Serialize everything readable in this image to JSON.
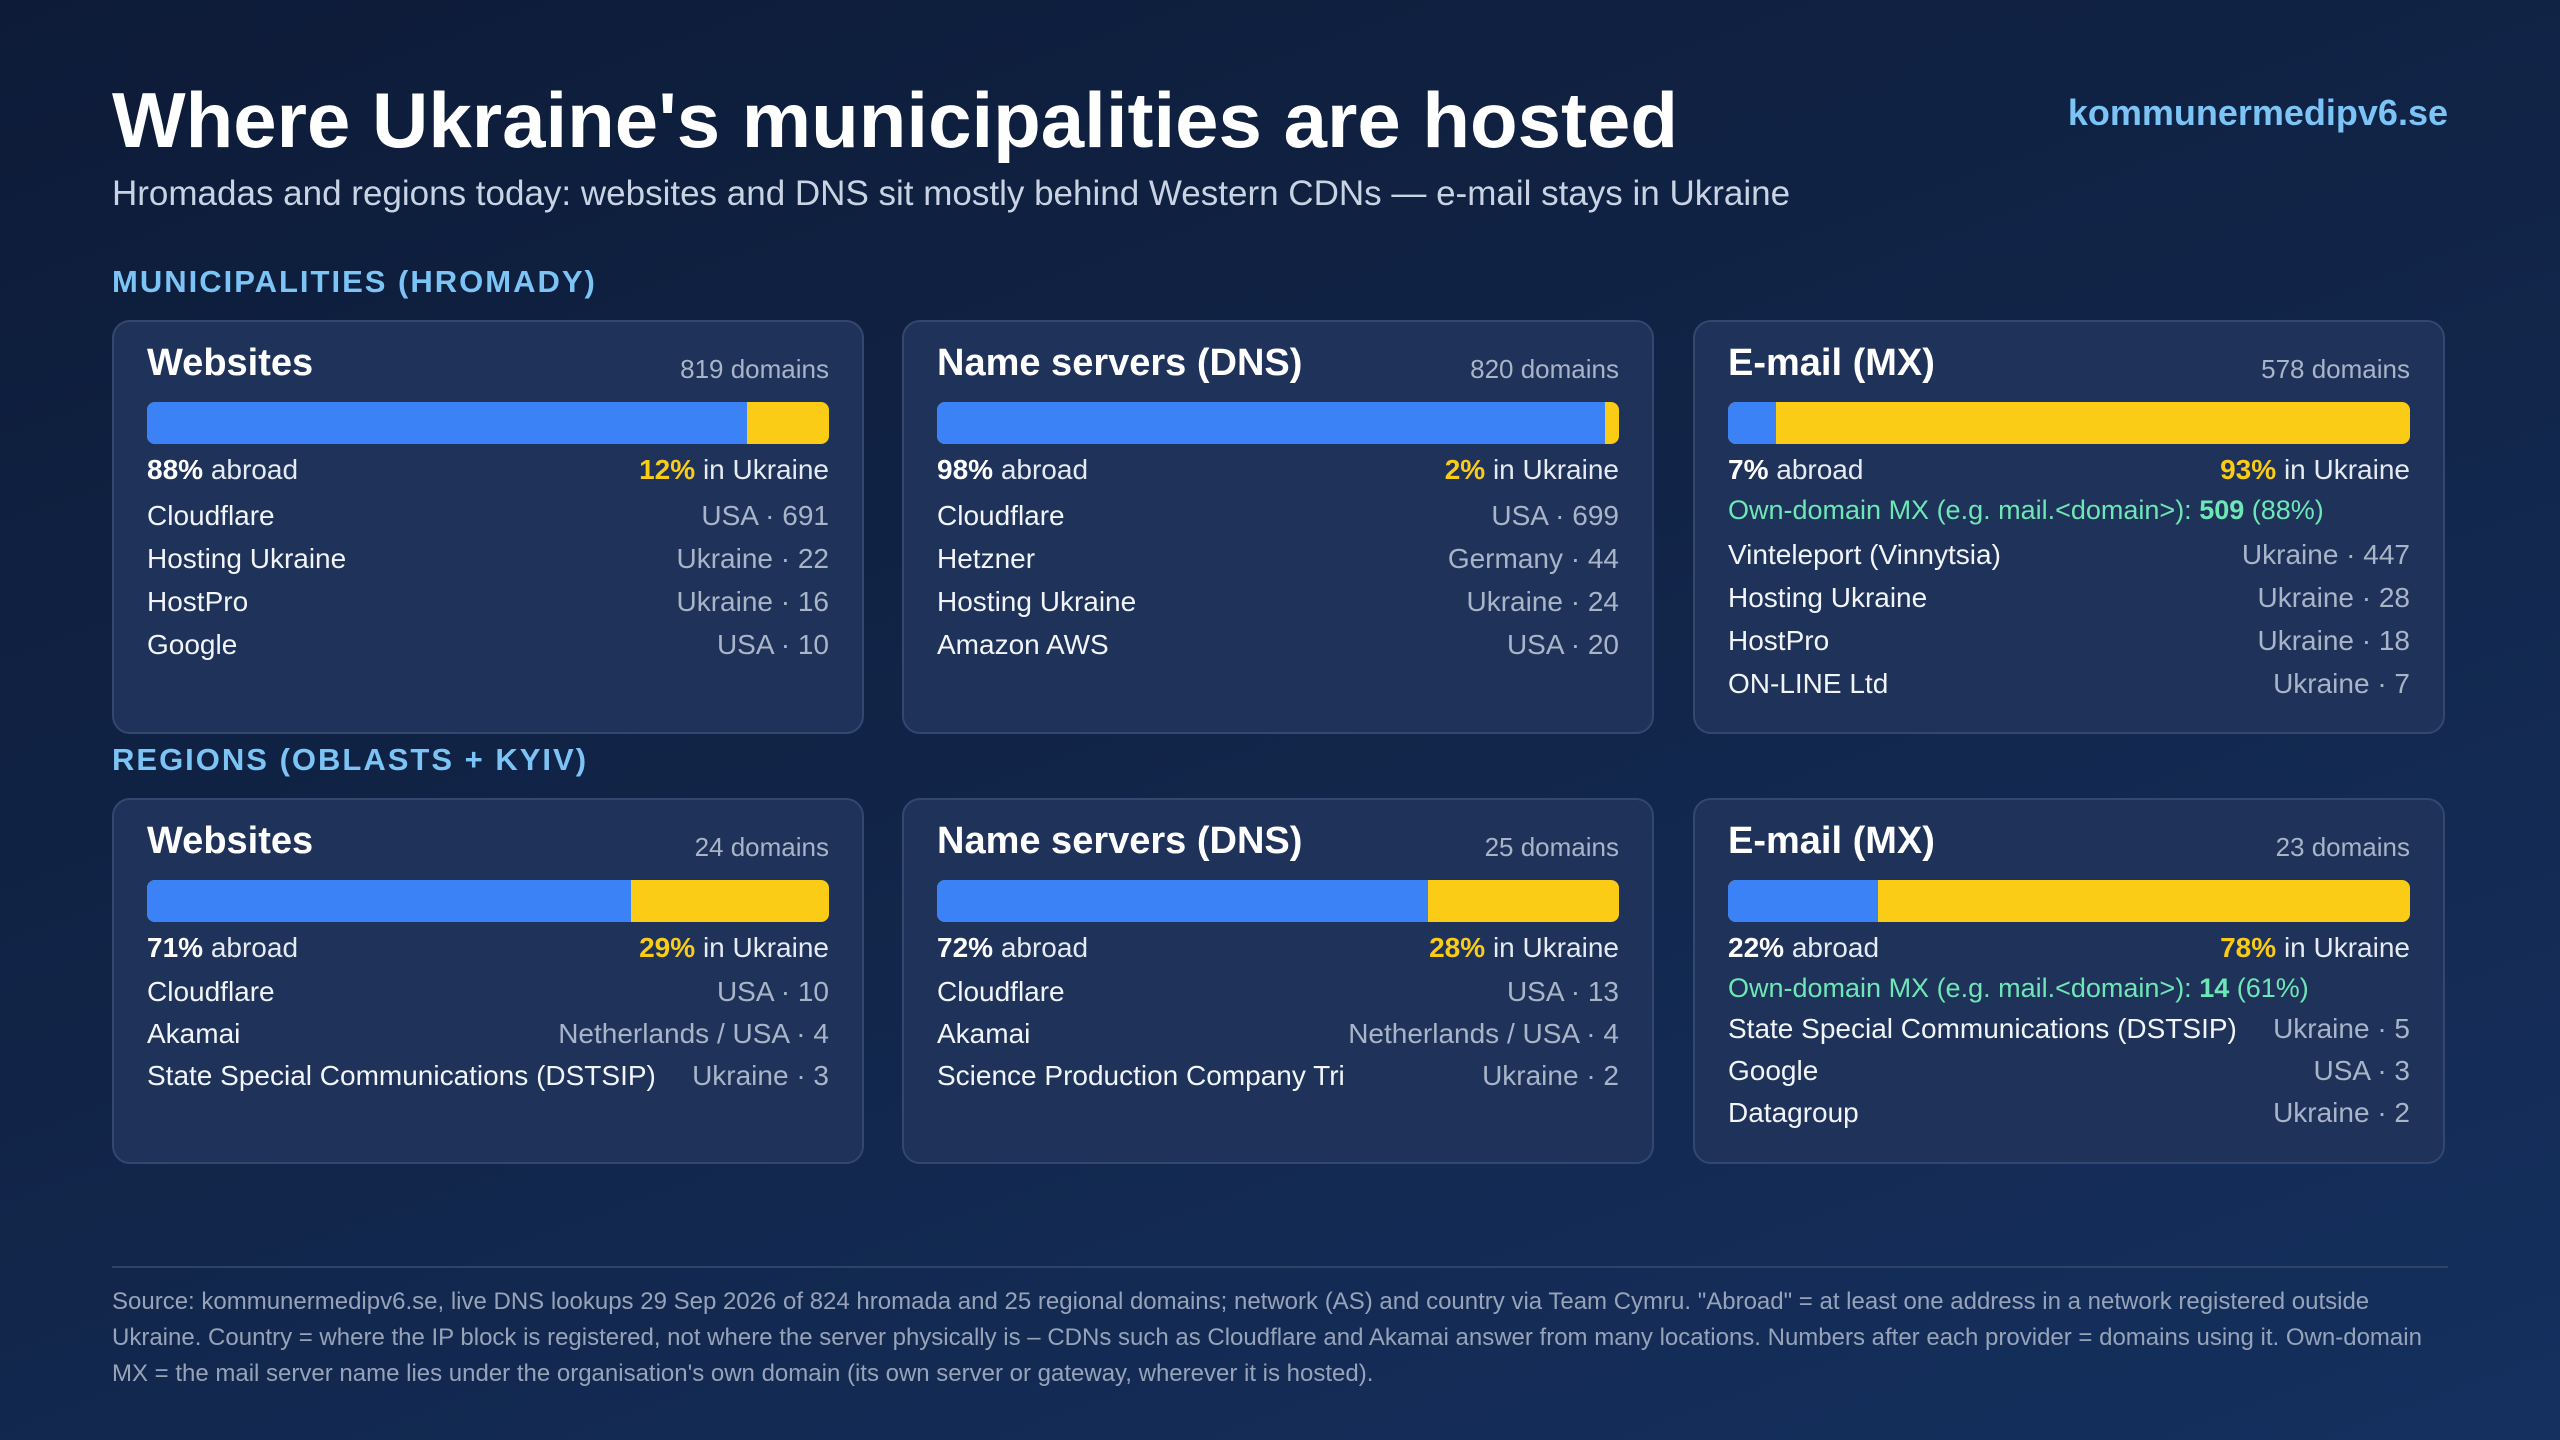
{
  "header": {
    "title": "Where Ukraine's municipalities are hosted",
    "site": "kommunermedipv6.se",
    "subtitle": "Hromadas and regions today: websites and DNS sit mostly behind Western CDNs — e-mail stays in Ukraine"
  },
  "sections": [
    {
      "label": "MUNICIPALITIES (HROMADY)"
    },
    {
      "label": "REGIONS (OBLASTS + KYIV)"
    }
  ],
  "colors": {
    "abroad": "#3b82f6",
    "ukraine": "#facc15",
    "own_mx": "#6ee7b7",
    "accent": "#7cc4f5"
  },
  "chart_data": [
    {
      "type": "bar",
      "section": "MUNICIPALITIES (HROMADY)",
      "title": "Websites",
      "count_label": "819 domains",
      "series": [
        {
          "name": "abroad",
          "values": [
            88
          ]
        },
        {
          "name": "in Ukraine",
          "values": [
            12
          ]
        }
      ],
      "abroad_pct": "88%",
      "abroad_label": "abroad",
      "ukraine_pct": "12%",
      "ukraine_label": "in Ukraine",
      "providers": [
        {
          "name": "Cloudflare",
          "detail": "USA · 691"
        },
        {
          "name": "Hosting Ukraine",
          "detail": "Ukraine · 22"
        },
        {
          "name": "HostPro",
          "detail": "Ukraine · 16"
        },
        {
          "name": "Google",
          "detail": "USA · 10"
        }
      ]
    },
    {
      "type": "bar",
      "section": "MUNICIPALITIES (HROMADY)",
      "title": "Name servers (DNS)",
      "count_label": "820 domains",
      "series": [
        {
          "name": "abroad",
          "values": [
            98
          ]
        },
        {
          "name": "in Ukraine",
          "values": [
            2
          ]
        }
      ],
      "abroad_pct": "98%",
      "abroad_label": "abroad",
      "ukraine_pct": "2%",
      "ukraine_label": "in Ukraine",
      "providers": [
        {
          "name": "Cloudflare",
          "detail": "USA · 699"
        },
        {
          "name": "Hetzner",
          "detail": "Germany · 44"
        },
        {
          "name": "Hosting Ukraine",
          "detail": "Ukraine · 24"
        },
        {
          "name": "Amazon AWS",
          "detail": "USA · 20"
        }
      ]
    },
    {
      "type": "bar",
      "section": "MUNICIPALITIES (HROMADY)",
      "title": "E-mail (MX)",
      "count_label": "578 domains",
      "series": [
        {
          "name": "abroad",
          "values": [
            7
          ]
        },
        {
          "name": "in Ukraine",
          "values": [
            93
          ]
        }
      ],
      "abroad_pct": "7%",
      "abroad_label": "abroad",
      "ukraine_pct": "93%",
      "ukraine_label": "in Ukraine",
      "own_mx": {
        "label": "Own-domain MX (e.g. mail.<domain>): ",
        "value": "509",
        "pct": "(88%)"
      },
      "providers": [
        {
          "name": "Vinteleport (Vinnytsia)",
          "detail": "Ukraine · 447"
        },
        {
          "name": "Hosting Ukraine",
          "detail": "Ukraine · 28"
        },
        {
          "name": "HostPro",
          "detail": "Ukraine · 18"
        },
        {
          "name": "ON-LINE Ltd",
          "detail": "Ukraine · 7"
        }
      ]
    },
    {
      "type": "bar",
      "section": "REGIONS (OBLASTS + KYIV)",
      "title": "Websites",
      "count_label": "24 domains",
      "series": [
        {
          "name": "abroad",
          "values": [
            71
          ]
        },
        {
          "name": "in Ukraine",
          "values": [
            29
          ]
        }
      ],
      "abroad_pct": "71%",
      "abroad_label": "abroad",
      "ukraine_pct": "29%",
      "ukraine_label": "in Ukraine",
      "providers": [
        {
          "name": "Cloudflare",
          "detail": "USA · 10"
        },
        {
          "name": "Akamai",
          "detail": "Netherlands / USA · 4"
        },
        {
          "name": "State Special Communications (DSTSIP)",
          "detail": "Ukraine · 3"
        }
      ]
    },
    {
      "type": "bar",
      "section": "REGIONS (OBLASTS + KYIV)",
      "title": "Name servers (DNS)",
      "count_label": "25 domains",
      "series": [
        {
          "name": "abroad",
          "values": [
            72
          ]
        },
        {
          "name": "in Ukraine",
          "values": [
            28
          ]
        }
      ],
      "abroad_pct": "72%",
      "abroad_label": "abroad",
      "ukraine_pct": "28%",
      "ukraine_label": "in Ukraine",
      "providers": [
        {
          "name": "Cloudflare",
          "detail": "USA · 13"
        },
        {
          "name": "Akamai",
          "detail": "Netherlands / USA · 4"
        },
        {
          "name": "Science Production Company Tri",
          "detail": "Ukraine · 2"
        }
      ]
    },
    {
      "type": "bar",
      "section": "REGIONS (OBLASTS + KYIV)",
      "title": "E-mail (MX)",
      "count_label": "23 domains",
      "series": [
        {
          "name": "abroad",
          "values": [
            22
          ]
        },
        {
          "name": "in Ukraine",
          "values": [
            78
          ]
        }
      ],
      "abroad_pct": "22%",
      "abroad_label": "abroad",
      "ukraine_pct": "78%",
      "ukraine_label": "in Ukraine",
      "own_mx": {
        "label": "Own-domain MX (e.g. mail.<domain>): ",
        "value": "14",
        "pct": "(61%)"
      },
      "providers": [
        {
          "name": "State Special Communications (DSTSIP)",
          "detail": "Ukraine · 5"
        },
        {
          "name": "Google",
          "detail": "USA · 3"
        },
        {
          "name": "Datagroup",
          "detail": "Ukraine · 2"
        }
      ]
    }
  ],
  "footer": {
    "source": "Source: kommunermedipv6.se, live DNS lookups 29 Sep 2026 of 824 hromada and 25 regional domains; network (AS) and country via Team Cymru. \"Abroad\" = at least one address in a network registered outside Ukraine. Country = where the IP block is registered, not where the server physically is – CDNs such as Cloudflare and Akamai answer from many locations. Numbers after each provider = domains using it. Own-domain MX = the mail server name lies under the organisation's own domain (its own server or gateway, wherever it is hosted)."
  }
}
